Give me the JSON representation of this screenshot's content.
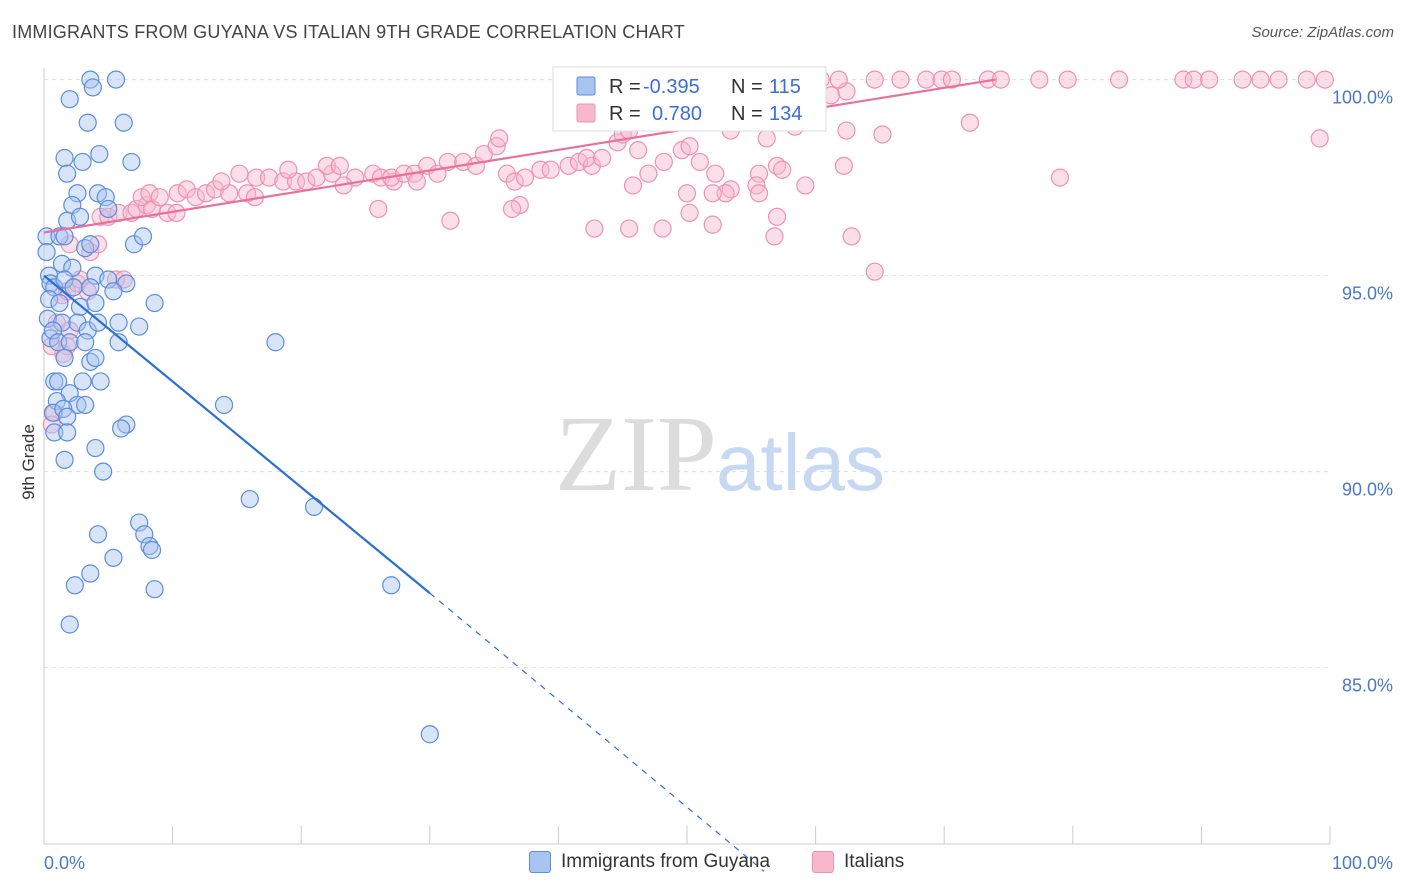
{
  "title": "IMMIGRANTS FROM GUYANA VS ITALIAN 9TH GRADE CORRELATION CHART",
  "source": "Source: ZipAtlas.com",
  "watermark": {
    "zip": "ZIP",
    "atlas": "atlas"
  },
  "colors": {
    "blue_fill": "#a8c4f0",
    "blue_stroke": "#5b8de0",
    "blue_line": "#2a6fd6",
    "pink_fill": "#f7b8cc",
    "pink_stroke": "#ee92b0",
    "pink_line": "#e8719a",
    "grid": "#dddddd",
    "tick_text": "#4a78c8"
  },
  "chart_data": {
    "type": "scatter",
    "title": "IMMIGRANTS FROM GUYANA VS ITALIAN 9TH GRADE CORRELATION CHART",
    "xlabel": "",
    "ylabel": "9th Grade",
    "xlim": [
      0,
      100
    ],
    "ylim": [
      80.5,
      100.5
    ],
    "x_tick_labels": [
      "0.0%",
      "100.0%"
    ],
    "y_ticks": [
      {
        "value": 100,
        "label": "100.0%"
      },
      {
        "value": 95,
        "label": "95.0%"
      },
      {
        "value": 90,
        "label": "90.0%"
      },
      {
        "value": 85,
        "label": "85.0%"
      }
    ],
    "legend": {
      "rows": [
        {
          "r_label": "R =",
          "r_value": "-0.395",
          "n_label": "N =",
          "n_value": "115"
        },
        {
          "r_label": "R =",
          "r_value": "0.780",
          "n_label": "N =",
          "n_value": "134"
        }
      ]
    },
    "series": [
      {
        "name": "Immigrants from Guyana",
        "r": -0.395,
        "n": 115,
        "trend": {
          "x0": 0,
          "y0": 95.0,
          "x1": 30,
          "y1": 86.9,
          "dashed_to_x": 56,
          "dashed_to_y": 79.8
        },
        "points": [
          [
            3.6,
            100
          ],
          [
            5.6,
            100
          ],
          [
            3.8,
            99.8
          ],
          [
            2,
            99.5
          ],
          [
            3.4,
            98.9
          ],
          [
            6.2,
            98.9
          ],
          [
            1.6,
            98
          ],
          [
            3,
            97.9
          ],
          [
            4.3,
            98.1
          ],
          [
            6.8,
            97.9
          ],
          [
            1.8,
            97.6
          ],
          [
            2.6,
            97.1
          ],
          [
            4.2,
            97.1
          ],
          [
            4.8,
            97
          ],
          [
            5,
            96.7
          ],
          [
            2.2,
            96.8
          ],
          [
            1.8,
            96.4
          ],
          [
            2.8,
            96.5
          ],
          [
            0.2,
            96
          ],
          [
            1.2,
            96
          ],
          [
            1.6,
            96
          ],
          [
            3.2,
            95.7
          ],
          [
            3.6,
            95.8
          ],
          [
            7,
            95.8
          ],
          [
            7.7,
            96
          ],
          [
            0.2,
            95.6
          ],
          [
            0.4,
            95
          ],
          [
            1.4,
            95.3
          ],
          [
            2.2,
            95.2
          ],
          [
            4,
            95
          ],
          [
            5,
            94.9
          ],
          [
            6.4,
            94.8
          ],
          [
            0.5,
            94.8
          ],
          [
            0.8,
            94.7
          ],
          [
            1.6,
            94.9
          ],
          [
            2.3,
            94.7
          ],
          [
            3.6,
            94.7
          ],
          [
            5.4,
            94.6
          ],
          [
            0.4,
            94.4
          ],
          [
            1.2,
            94.3
          ],
          [
            2.8,
            94.2
          ],
          [
            4,
            94.3
          ],
          [
            8.6,
            94.3
          ],
          [
            0.3,
            93.9
          ],
          [
            1.4,
            93.8
          ],
          [
            2.6,
            93.8
          ],
          [
            3.4,
            93.6
          ],
          [
            4.2,
            93.8
          ],
          [
            5.8,
            93.8
          ],
          [
            7.4,
            93.7
          ],
          [
            0.5,
            93.4
          ],
          [
            0.7,
            93.6
          ],
          [
            1.1,
            93.3
          ],
          [
            2,
            93.3
          ],
          [
            3.2,
            93.3
          ],
          [
            5.8,
            93.3
          ],
          [
            18,
            93.3
          ],
          [
            1.6,
            92.9
          ],
          [
            3.6,
            92.8
          ],
          [
            4,
            92.9
          ],
          [
            0.8,
            92.3
          ],
          [
            1.1,
            92.3
          ],
          [
            2,
            92
          ],
          [
            3,
            92.3
          ],
          [
            4.4,
            92.3
          ],
          [
            1,
            91.8
          ],
          [
            2.6,
            91.7
          ],
          [
            3.2,
            91.7
          ],
          [
            14,
            91.7
          ],
          [
            0.7,
            91.5
          ],
          [
            1.5,
            91.6
          ],
          [
            1.8,
            91.4
          ],
          [
            6.4,
            91.2
          ],
          [
            6,
            91.1
          ],
          [
            0.8,
            91
          ],
          [
            1.8,
            91
          ],
          [
            4,
            90.6
          ],
          [
            1.6,
            90.3
          ],
          [
            4.6,
            90
          ],
          [
            16,
            89.3
          ],
          [
            21,
            89.1
          ],
          [
            7.4,
            88.7
          ],
          [
            7.8,
            88.4
          ],
          [
            4.2,
            88.4
          ],
          [
            8.2,
            88.1
          ],
          [
            8.4,
            88
          ],
          [
            5.4,
            87.8
          ],
          [
            3.6,
            87.4
          ],
          [
            2.4,
            87.1
          ],
          [
            8.6,
            87.0
          ],
          [
            27,
            87.1
          ],
          [
            2,
            86.1
          ],
          [
            30,
            83.3
          ]
        ]
      },
      {
        "name": "Italians",
        "r": 0.78,
        "n": 134,
        "trend": {
          "x0": 0,
          "y0": 96.1,
          "x1": 74,
          "y1": 100
        },
        "points": [
          [
            1.4,
            94.5
          ],
          [
            1.8,
            94.6
          ],
          [
            2.6,
            94.8
          ],
          [
            3.4,
            94.6
          ],
          [
            2.8,
            94.9
          ],
          [
            5.6,
            94.9
          ],
          [
            6.2,
            94.9
          ],
          [
            1,
            93.8
          ],
          [
            2,
            93.6
          ],
          [
            1.8,
            93.2
          ],
          [
            0.6,
            93.2
          ],
          [
            1.5,
            93
          ],
          [
            0.8,
            91.5
          ],
          [
            0.6,
            91.2
          ],
          [
            2,
            95.8
          ],
          [
            3.6,
            95.6
          ],
          [
            4.2,
            95.8
          ],
          [
            4.4,
            96.5
          ],
          [
            5,
            96.5
          ],
          [
            5.8,
            96.6
          ],
          [
            6.8,
            96.6
          ],
          [
            7.2,
            96.7
          ],
          [
            8,
            96.8
          ],
          [
            8.4,
            96.7
          ],
          [
            9.6,
            96.6
          ],
          [
            10.3,
            96.6
          ],
          [
            7.6,
            97
          ],
          [
            8.2,
            97.1
          ],
          [
            9,
            97
          ],
          [
            10.4,
            97.1
          ],
          [
            11.1,
            97.2
          ],
          [
            11.8,
            97
          ],
          [
            12.6,
            97.1
          ],
          [
            13.3,
            97.2
          ],
          [
            14.4,
            97.1
          ],
          [
            15.8,
            97.1
          ],
          [
            16.4,
            97
          ],
          [
            13.8,
            97.4
          ],
          [
            15.2,
            97.6
          ],
          [
            16.5,
            97.5
          ],
          [
            17.5,
            97.5
          ],
          [
            18.6,
            97.4
          ],
          [
            19.6,
            97.4
          ],
          [
            19,
            97.7
          ],
          [
            20.4,
            97.4
          ],
          [
            21.2,
            97.5
          ],
          [
            22.4,
            97.6
          ],
          [
            22,
            97.8
          ],
          [
            23,
            97.8
          ],
          [
            24.2,
            97.5
          ],
          [
            23.3,
            97.3
          ],
          [
            25.6,
            97.6
          ],
          [
            26.2,
            97.5
          ],
          [
            27.2,
            97.4
          ],
          [
            27,
            97.5
          ],
          [
            28,
            97.6
          ],
          [
            28.8,
            97.6
          ],
          [
            29,
            97.4
          ],
          [
            29.8,
            97.8
          ],
          [
            30.6,
            97.6
          ],
          [
            31.4,
            97.9
          ],
          [
            32.6,
            97.9
          ],
          [
            33.6,
            97.8
          ],
          [
            34.2,
            98.1
          ],
          [
            35.2,
            98.3
          ],
          [
            35.4,
            98.5
          ],
          [
            36,
            97.6
          ],
          [
            36.6,
            97.4
          ],
          [
            37.4,
            97.5
          ],
          [
            38.6,
            97.7
          ],
          [
            39.4,
            97.7
          ],
          [
            40.8,
            97.8
          ],
          [
            41.6,
            97.9
          ],
          [
            42.6,
            97.8
          ],
          [
            42.2,
            98
          ],
          [
            43.4,
            98
          ],
          [
            44.6,
            98.4
          ],
          [
            45,
            98.6
          ],
          [
            45.5,
            98.7
          ],
          [
            46.2,
            98.2
          ],
          [
            47,
            97.6
          ],
          [
            48.2,
            97.9
          ],
          [
            49.6,
            98.2
          ],
          [
            50.2,
            98.3
          ],
          [
            51,
            97.9
          ],
          [
            52.2,
            97.6
          ],
          [
            53.4,
            97.2
          ],
          [
            55.6,
            97.6
          ],
          [
            57,
            97.8
          ],
          [
            57.4,
            97.7
          ],
          [
            58.4,
            98.8
          ],
          [
            59.2,
            97.3
          ],
          [
            62.2,
            97.8
          ],
          [
            45.5,
            96.2
          ],
          [
            42.8,
            96.2
          ],
          [
            48.1,
            96.2
          ],
          [
            26,
            96.7
          ],
          [
            31.6,
            96.4
          ],
          [
            37,
            96.8
          ],
          [
            36.4,
            96.7
          ],
          [
            45.8,
            97.3
          ],
          [
            50,
            97.1
          ],
          [
            53,
            97.1
          ],
          [
            55.4,
            97.3
          ],
          [
            55.6,
            97.1
          ],
          [
            57,
            96.5
          ],
          [
            52,
            97.1
          ],
          [
            46.2,
            99.2
          ],
          [
            48.6,
            99.2
          ],
          [
            57.6,
            99.5
          ],
          [
            61.2,
            99.6
          ],
          [
            62.4,
            99.7
          ],
          [
            43.8,
            99.8
          ],
          [
            45.8,
            99.9
          ],
          [
            47.6,
            100
          ],
          [
            50.6,
            100
          ],
          [
            52.2,
            100
          ],
          [
            53,
            100
          ],
          [
            55.2,
            100
          ],
          [
            56.6,
            100
          ],
          [
            58.2,
            100
          ],
          [
            59.2,
            100
          ],
          [
            60.4,
            100
          ],
          [
            61.8,
            100
          ],
          [
            64.6,
            100
          ],
          [
            66.6,
            100
          ],
          [
            68.6,
            100
          ],
          [
            69.8,
            100
          ],
          [
            70.6,
            100
          ],
          [
            73.4,
            100
          ],
          [
            74.4,
            100
          ],
          [
            77.4,
            100
          ],
          [
            79.6,
            100
          ],
          [
            83.6,
            100
          ],
          [
            88.6,
            100
          ],
          [
            89.4,
            100
          ],
          [
            90.6,
            100
          ],
          [
            93.2,
            100
          ],
          [
            94.6,
            100
          ],
          [
            96,
            100
          ],
          [
            98.2,
            100
          ],
          [
            99.6,
            100
          ],
          [
            99.2,
            98.5
          ],
          [
            79,
            97.5
          ],
          [
            62.4,
            98.7
          ],
          [
            65.2,
            98.6
          ],
          [
            53.4,
            98.7
          ],
          [
            56.2,
            98.5
          ],
          [
            62.8,
            96.0
          ],
          [
            56.8,
            96.0
          ],
          [
            50.2,
            96.6
          ],
          [
            52,
            96.3
          ],
          [
            64.6,
            95.1
          ],
          [
            72,
            98.9
          ]
        ]
      }
    ],
    "bottom_legend": [
      "Immigrants from Guyana",
      "Italians"
    ]
  }
}
